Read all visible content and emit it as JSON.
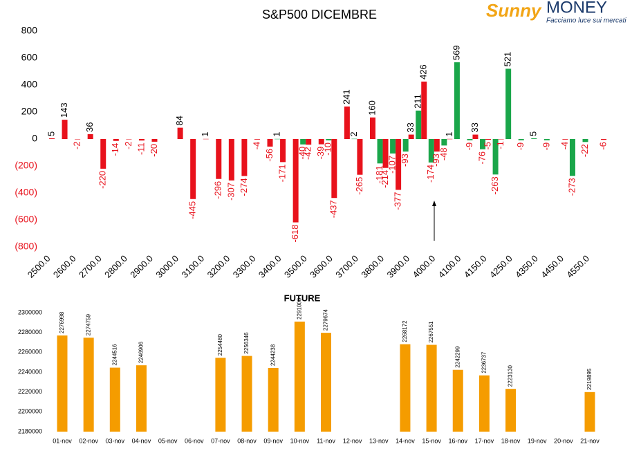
{
  "logo": {
    "brand": "Sunny",
    "name": "MONEY",
    "tagline": "Facciamo luce sui mercati"
  },
  "chart_data": [
    {
      "type": "bar",
      "title": "S&P500 DICEMBRE",
      "categories": [
        "2500.0",
        null,
        "2600.0",
        null,
        "2700.0",
        null,
        "2800.0",
        null,
        "2900.0",
        null,
        "3000.0",
        null,
        "3100.0",
        null,
        "3200.0",
        null,
        "3300.0",
        null,
        "3400.0",
        null,
        "3500.0",
        null,
        "3600.0",
        null,
        "3700.0",
        null,
        "3800.0",
        null,
        "3900.0",
        null,
        "4000.0",
        null,
        "4100.0",
        null,
        "4150.0",
        null,
        "4250.0",
        null,
        "4350.0",
        null,
        "4450.0",
        null,
        "4550.0",
        null
      ],
      "series": [
        {
          "color": "#1aa64a",
          "values": [
            null,
            null,
            null,
            null,
            null,
            null,
            null,
            null,
            null,
            null,
            null,
            null,
            null,
            null,
            null,
            null,
            null,
            null,
            1,
            null,
            -40,
            null,
            -10,
            null,
            2,
            null,
            -181,
            -107,
            -93,
            211,
            -174,
            -48,
            569,
            -9,
            -76,
            -263,
            521,
            -9,
            5,
            -9,
            null,
            -273,
            -22,
            null
          ]
        },
        {
          "color": "#e8121c",
          "values": [
            5,
            143,
            -2,
            36,
            -220,
            -14,
            -2,
            -11,
            -20,
            null,
            84,
            -445,
            1,
            -296,
            -307,
            -274,
            -4,
            -56,
            -171,
            -618,
            -42,
            -39,
            -437,
            241,
            -265,
            160,
            -214,
            -377,
            33,
            426,
            -93,
            1,
            null,
            33,
            -5,
            -1,
            null,
            null,
            null,
            null,
            -4,
            null,
            null,
            -6
          ]
        }
      ],
      "ylim": [
        -800,
        800
      ],
      "yticks": [
        {
          "value": -800,
          "label": "(800)"
        },
        {
          "value": -600,
          "label": "(600)"
        },
        {
          "value": -400,
          "label": "(400)"
        },
        {
          "value": -200,
          "label": "(200)"
        },
        0,
        200,
        400,
        600,
        800
      ],
      "grid": false
    },
    {
      "type": "bar",
      "title": "FUTURE",
      "categories": [
        "01-nov",
        "02-nov",
        "03-nov",
        "04-nov",
        "05-nov",
        "06-nov",
        "07-nov",
        "08-nov",
        "09-nov",
        "10-nov",
        "11-nov",
        "12-nov",
        "13-nov",
        "14-nov",
        "15-nov",
        "16-nov",
        "17-nov",
        "18-nov",
        "19-nov",
        "20-nov",
        "21-nov"
      ],
      "series": [
        {
          "color": "#f59c00",
          "values": [
            2276998,
            2274759,
            2244516,
            2246906,
            null,
            null,
            2254480,
            2256346,
            2244238,
            2291000,
            2279674,
            null,
            null,
            2268172,
            2267551,
            2242299,
            2236737,
            2223130,
            null,
            null,
            2219895
          ]
        }
      ],
      "ylim": [
        2180000,
        2300000
      ],
      "yticks": [
        2180000,
        2200000,
        2220000,
        2240000,
        2260000,
        2280000,
        2300000
      ],
      "grid": false
    }
  ]
}
